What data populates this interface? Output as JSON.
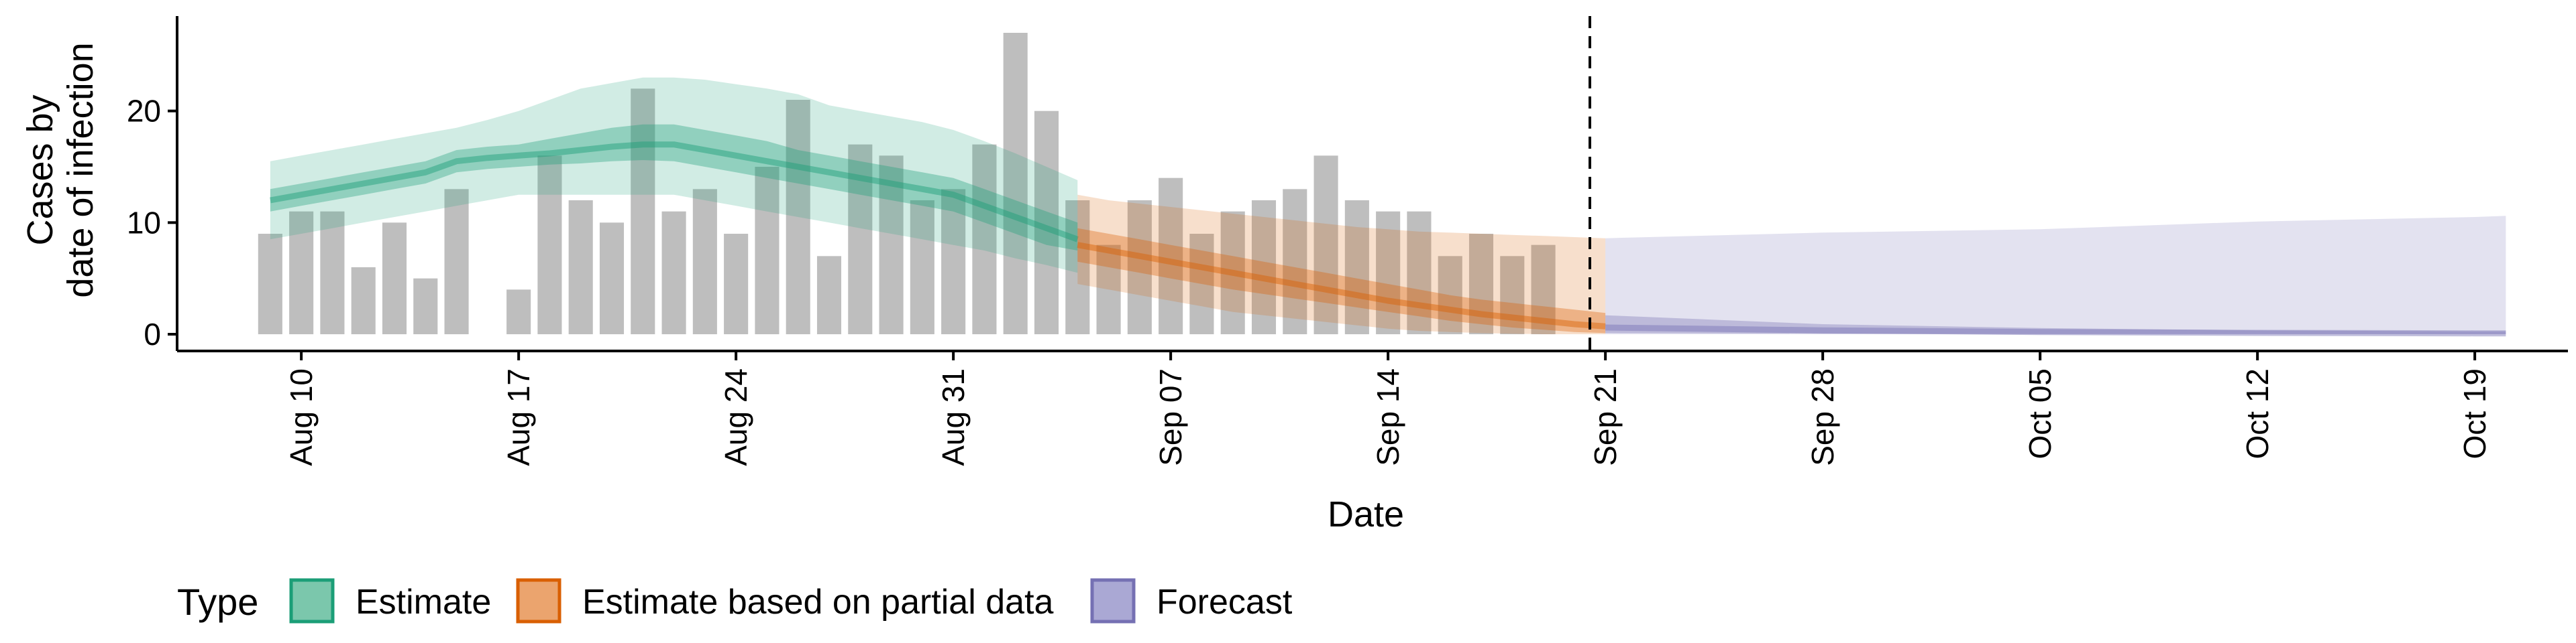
{
  "chart_data": {
    "type": "bar",
    "xlabel": "Date",
    "ylabel_lines": [
      "Cases by",
      "date of infection"
    ],
    "ylim": [
      -1.5,
      28.5
    ],
    "y_ticks": [
      0,
      10,
      20
    ],
    "x_domain": [
      "2020-08-06",
      "2020-10-22"
    ],
    "x_ticks": [
      {
        "date": "2020-08-10",
        "label": "Aug 10"
      },
      {
        "date": "2020-08-17",
        "label": "Aug 17"
      },
      {
        "date": "2020-08-24",
        "label": "Aug 24"
      },
      {
        "date": "2020-08-31",
        "label": "Aug 31"
      },
      {
        "date": "2020-09-07",
        "label": "Sep 07"
      },
      {
        "date": "2020-09-14",
        "label": "Sep 14"
      },
      {
        "date": "2020-09-21",
        "label": "Sep 21"
      },
      {
        "date": "2020-09-28",
        "label": "Sep 28"
      },
      {
        "date": "2020-10-05",
        "label": "Oct 05"
      },
      {
        "date": "2020-10-12",
        "label": "Oct 12"
      },
      {
        "date": "2020-10-19",
        "label": "Oct 19"
      }
    ],
    "vline_date": "2020-09-20",
    "reported_cases": {
      "start_date": "2020-08-09",
      "values": [
        9,
        11,
        11,
        6,
        10,
        5,
        13,
        0,
        4,
        16,
        12,
        10,
        22,
        11,
        13,
        9,
        15,
        21,
        7,
        17,
        16,
        12,
        13,
        17,
        27,
        20,
        12,
        8,
        12,
        14,
        9,
        11,
        12,
        13,
        16,
        12,
        11,
        11,
        7,
        9,
        7,
        8
      ],
      "color": "#bebebe"
    },
    "legend": {
      "title": "Type",
      "entries": [
        {
          "label": "Estimate",
          "fill": "#7bc7ac",
          "stroke": "#1b9e77"
        },
        {
          "label": "Estimate based on partial data",
          "fill": "#eba46e",
          "stroke": "#d95f02"
        },
        {
          "label": "Forecast",
          "fill": "#aaa8d4",
          "stroke": "#7570b3"
        }
      ]
    },
    "series": [
      {
        "name": "Estimate",
        "color": "#1b9e77",
        "start_date": "2020-08-09",
        "median": [
          12,
          12.5,
          13,
          13.5,
          14,
          14.5,
          15.5,
          15.8,
          16,
          16.2,
          16.5,
          16.8,
          17,
          17,
          16.5,
          16,
          15.5,
          15,
          14.5,
          14,
          13.5,
          13,
          12.5,
          11.5,
          10.5,
          9.5,
          8.5
        ],
        "inner_low": [
          11,
          11.5,
          12,
          12.5,
          13,
          13.5,
          14.5,
          14.8,
          15,
          15.2,
          15.3,
          15.5,
          15.6,
          15.5,
          15,
          14.5,
          14,
          13.5,
          13,
          12.5,
          12,
          11.5,
          11,
          10,
          9,
          8,
          7.5
        ],
        "inner_high": [
          13,
          13.5,
          14,
          14.5,
          15,
          15.5,
          16.5,
          16.8,
          17,
          17.5,
          18,
          18.5,
          18.8,
          18.8,
          18.3,
          17.8,
          17.3,
          16.5,
          16,
          15.5,
          15,
          14.5,
          14,
          13,
          12,
          11,
          10
        ],
        "outer_low": [
          8.5,
          9,
          9.5,
          10,
          10.5,
          11,
          11.5,
          12,
          12.5,
          12.5,
          12.5,
          12.5,
          12.5,
          12.5,
          12,
          11.5,
          11,
          10.5,
          10,
          9.5,
          9,
          8.5,
          8,
          7.5,
          6.8,
          6.2,
          5.5
        ],
        "outer_high": [
          15.5,
          16,
          16.5,
          17,
          17.5,
          18,
          18.5,
          19.2,
          20,
          21,
          22,
          22.5,
          23,
          23,
          22.8,
          22.4,
          22,
          21.5,
          20.5,
          20,
          19.5,
          19,
          18.3,
          17.3,
          16.2,
          15,
          13.8
        ]
      },
      {
        "name": "Estimate based on partial data",
        "color": "#d95f02",
        "start_date": "2020-09-04",
        "median": [
          8,
          7.5,
          7,
          6.5,
          6,
          5.5,
          5,
          4.5,
          4,
          3.5,
          3,
          2.6,
          2.2,
          1.8,
          1.5,
          1.2,
          0.9,
          0.7
        ],
        "inner_low": [
          6.5,
          6,
          5.5,
          5,
          4.5,
          4,
          3.6,
          3.2,
          2.8,
          2.4,
          2,
          1.6,
          1.2,
          0.9,
          0.6,
          0.4,
          0.2,
          0.1
        ],
        "inner_high": [
          9.5,
          9,
          8.5,
          8,
          7.5,
          7,
          6.5,
          6,
          5.5,
          5,
          4.5,
          4,
          3.5,
          3.1,
          2.8,
          2.5,
          2.2,
          1.9
        ],
        "outer_low": [
          4.5,
          4,
          3.5,
          3,
          2.5,
          2,
          1.7,
          1.4,
          1.1,
          0.8,
          0.5,
          0.3,
          0.2,
          0.1,
          0.05,
          0,
          0,
          0
        ],
        "outer_high": [
          12.5,
          12,
          11.7,
          11.4,
          11.1,
          10.8,
          10.5,
          10.2,
          9.9,
          9.6,
          9.4,
          9.2,
          9.1,
          9,
          8.9,
          8.8,
          8.7,
          8.6
        ]
      },
      {
        "name": "Forecast",
        "color": "#7570b3",
        "start_date": "2020-09-21",
        "dates": [
          "2020-09-21",
          "2020-09-28",
          "2020-10-05",
          "2020-10-12",
          "2020-10-19",
          "2020-10-20"
        ],
        "median": [
          0.6,
          0.35,
          0.2,
          0.12,
          0.08,
          0.08
        ],
        "inner_low": [
          0.1,
          0.05,
          0.02,
          0.01,
          0,
          0
        ],
        "inner_high": [
          1.7,
          0.9,
          0.55,
          0.35,
          0.25,
          0.25
        ],
        "outer_low": [
          0,
          0,
          0,
          0,
          0,
          0
        ],
        "outer_high": [
          8.6,
          9.1,
          9.4,
          10.1,
          10.5,
          10.6
        ]
      }
    ]
  }
}
